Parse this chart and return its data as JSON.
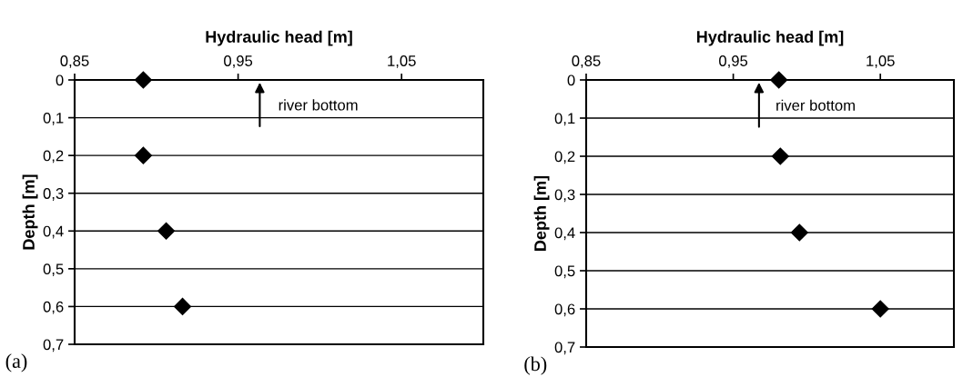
{
  "chart_data": [
    {
      "type": "scatter",
      "xlabel": "Hydraulic head [m]",
      "ylabel": "Depth [m]",
      "series": [
        {
          "color": "#000000",
          "x": [
            0.892,
            0.892,
            0.906,
            0.916
          ],
          "values": [
            0,
            0.2,
            0.4,
            0.6
          ]
        }
      ],
      "marker": "diamond",
      "grid": "y",
      "xlim": [
        0.85,
        1.1
      ],
      "xticks": [
        {
          "value": 0.85,
          "label": "0,85"
        },
        {
          "value": 0.95,
          "label": "0,95"
        },
        {
          "value": 1.05,
          "label": "1,05"
        }
      ],
      "ylim": [
        0.7,
        0
      ],
      "yticks": [
        0,
        {
          "value": 0.1,
          "label": "0,1"
        },
        {
          "value": 0.2,
          "label": "0,2"
        },
        {
          "value": 0.3,
          "label": "0,3"
        },
        {
          "value": 0.4,
          "label": "0,4"
        },
        {
          "value": 0.5,
          "label": "0,5"
        },
        {
          "value": 0.6,
          "label": "0,6"
        },
        {
          "value": 0.7,
          "label": "0,7"
        }
      ],
      "annotations": [
        "river bottom",
        "(a)"
      ]
    },
    {
      "type": "scatter",
      "xlabel": "Hydraulic head [m]",
      "ylabel": "Depth [m]",
      "series": [
        {
          "color": "#000000",
          "x": [
            0.981,
            0.982,
            0.995,
            1.05
          ],
          "values": [
            0,
            0.2,
            0.4,
            0.6
          ]
        }
      ],
      "marker": "diamond",
      "grid": "y",
      "xlim": [
        0.85,
        1.1
      ],
      "xticks": [
        {
          "value": 0.85,
          "label": "0,85"
        },
        {
          "value": 0.95,
          "label": "0,95"
        },
        {
          "value": 1.05,
          "label": "1,05"
        }
      ],
      "ylim": [
        0.7,
        0
      ],
      "yticks": [
        0,
        {
          "value": 0.1,
          "label": "0,1"
        },
        {
          "value": 0.2,
          "label": "0,2"
        },
        {
          "value": 0.3,
          "label": "0,3"
        },
        {
          "value": 0.4,
          "label": "0,4"
        },
        {
          "value": 0.5,
          "label": "0,5"
        },
        {
          "value": 0.6,
          "label": "0,6"
        },
        {
          "value": 0.7,
          "label": "0,7"
        }
      ],
      "annotations": [
        "river bottom",
        "(b)"
      ]
    }
  ]
}
